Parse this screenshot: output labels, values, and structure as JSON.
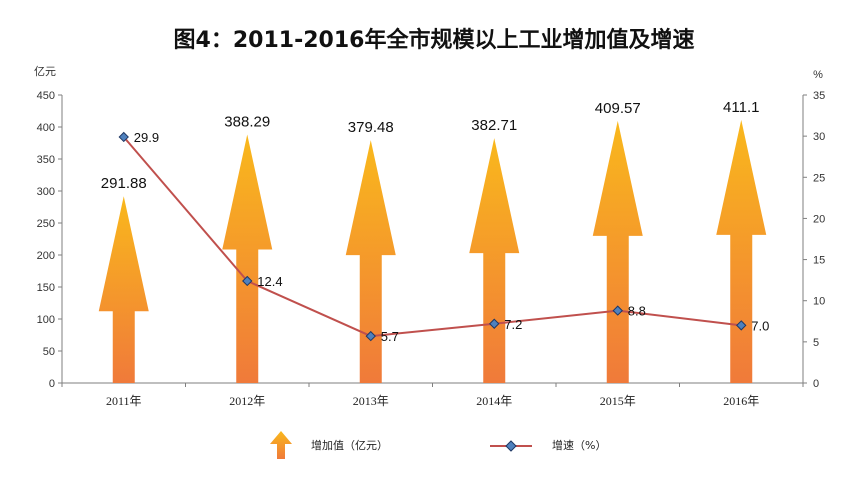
{
  "chart_data": {
    "type": "bar+line",
    "title": "图4：2011-2016年全市规模以上工业增加值及增速",
    "categories": [
      "2011年",
      "2012年",
      "2013年",
      "2014年",
      "2015年",
      "2016年"
    ],
    "series": [
      {
        "name": "增加值（亿元）",
        "axis": "left",
        "style": "arrow-bar",
        "values": [
          291.88,
          388.29,
          379.48,
          382.71,
          409.57,
          411.1
        ],
        "labels": [
          "291.88",
          "388.29",
          "379.48",
          "382.71",
          "409.57",
          "411.1"
        ]
      },
      {
        "name": "增速（%）",
        "axis": "right",
        "style": "line",
        "values": [
          29.9,
          12.4,
          5.7,
          7.2,
          8.8,
          7.0
        ],
        "labels": [
          "29.9",
          "12.4",
          "5.7",
          "7.2",
          "8.8",
          "7.0"
        ]
      }
    ],
    "left_axis": {
      "unit": "亿元",
      "ylim": [
        0,
        450
      ],
      "ticks": [
        "0",
        "50",
        "100",
        "150",
        "200",
        "250",
        "300",
        "350",
        "400",
        "450"
      ]
    },
    "right_axis": {
      "unit": "%",
      "ylim": [
        0,
        35
      ],
      "ticks": [
        "0",
        "5",
        "10",
        "15",
        "20",
        "25",
        "30",
        "35"
      ]
    },
    "legend": [
      {
        "label": "增加值（亿元）",
        "icon": "up-arrow-icon"
      },
      {
        "label": "增速（%）",
        "icon": "line-diamond-icon"
      }
    ],
    "legend_position": "bottom",
    "colors": {
      "arrow_top": "#F9B81C",
      "arrow_bottom": "#F07A3A",
      "line": "#C0504D",
      "marker_fill": "#4F81BD",
      "marker_stroke": "#1F3864",
      "axis": "#7F7F7F"
    }
  }
}
